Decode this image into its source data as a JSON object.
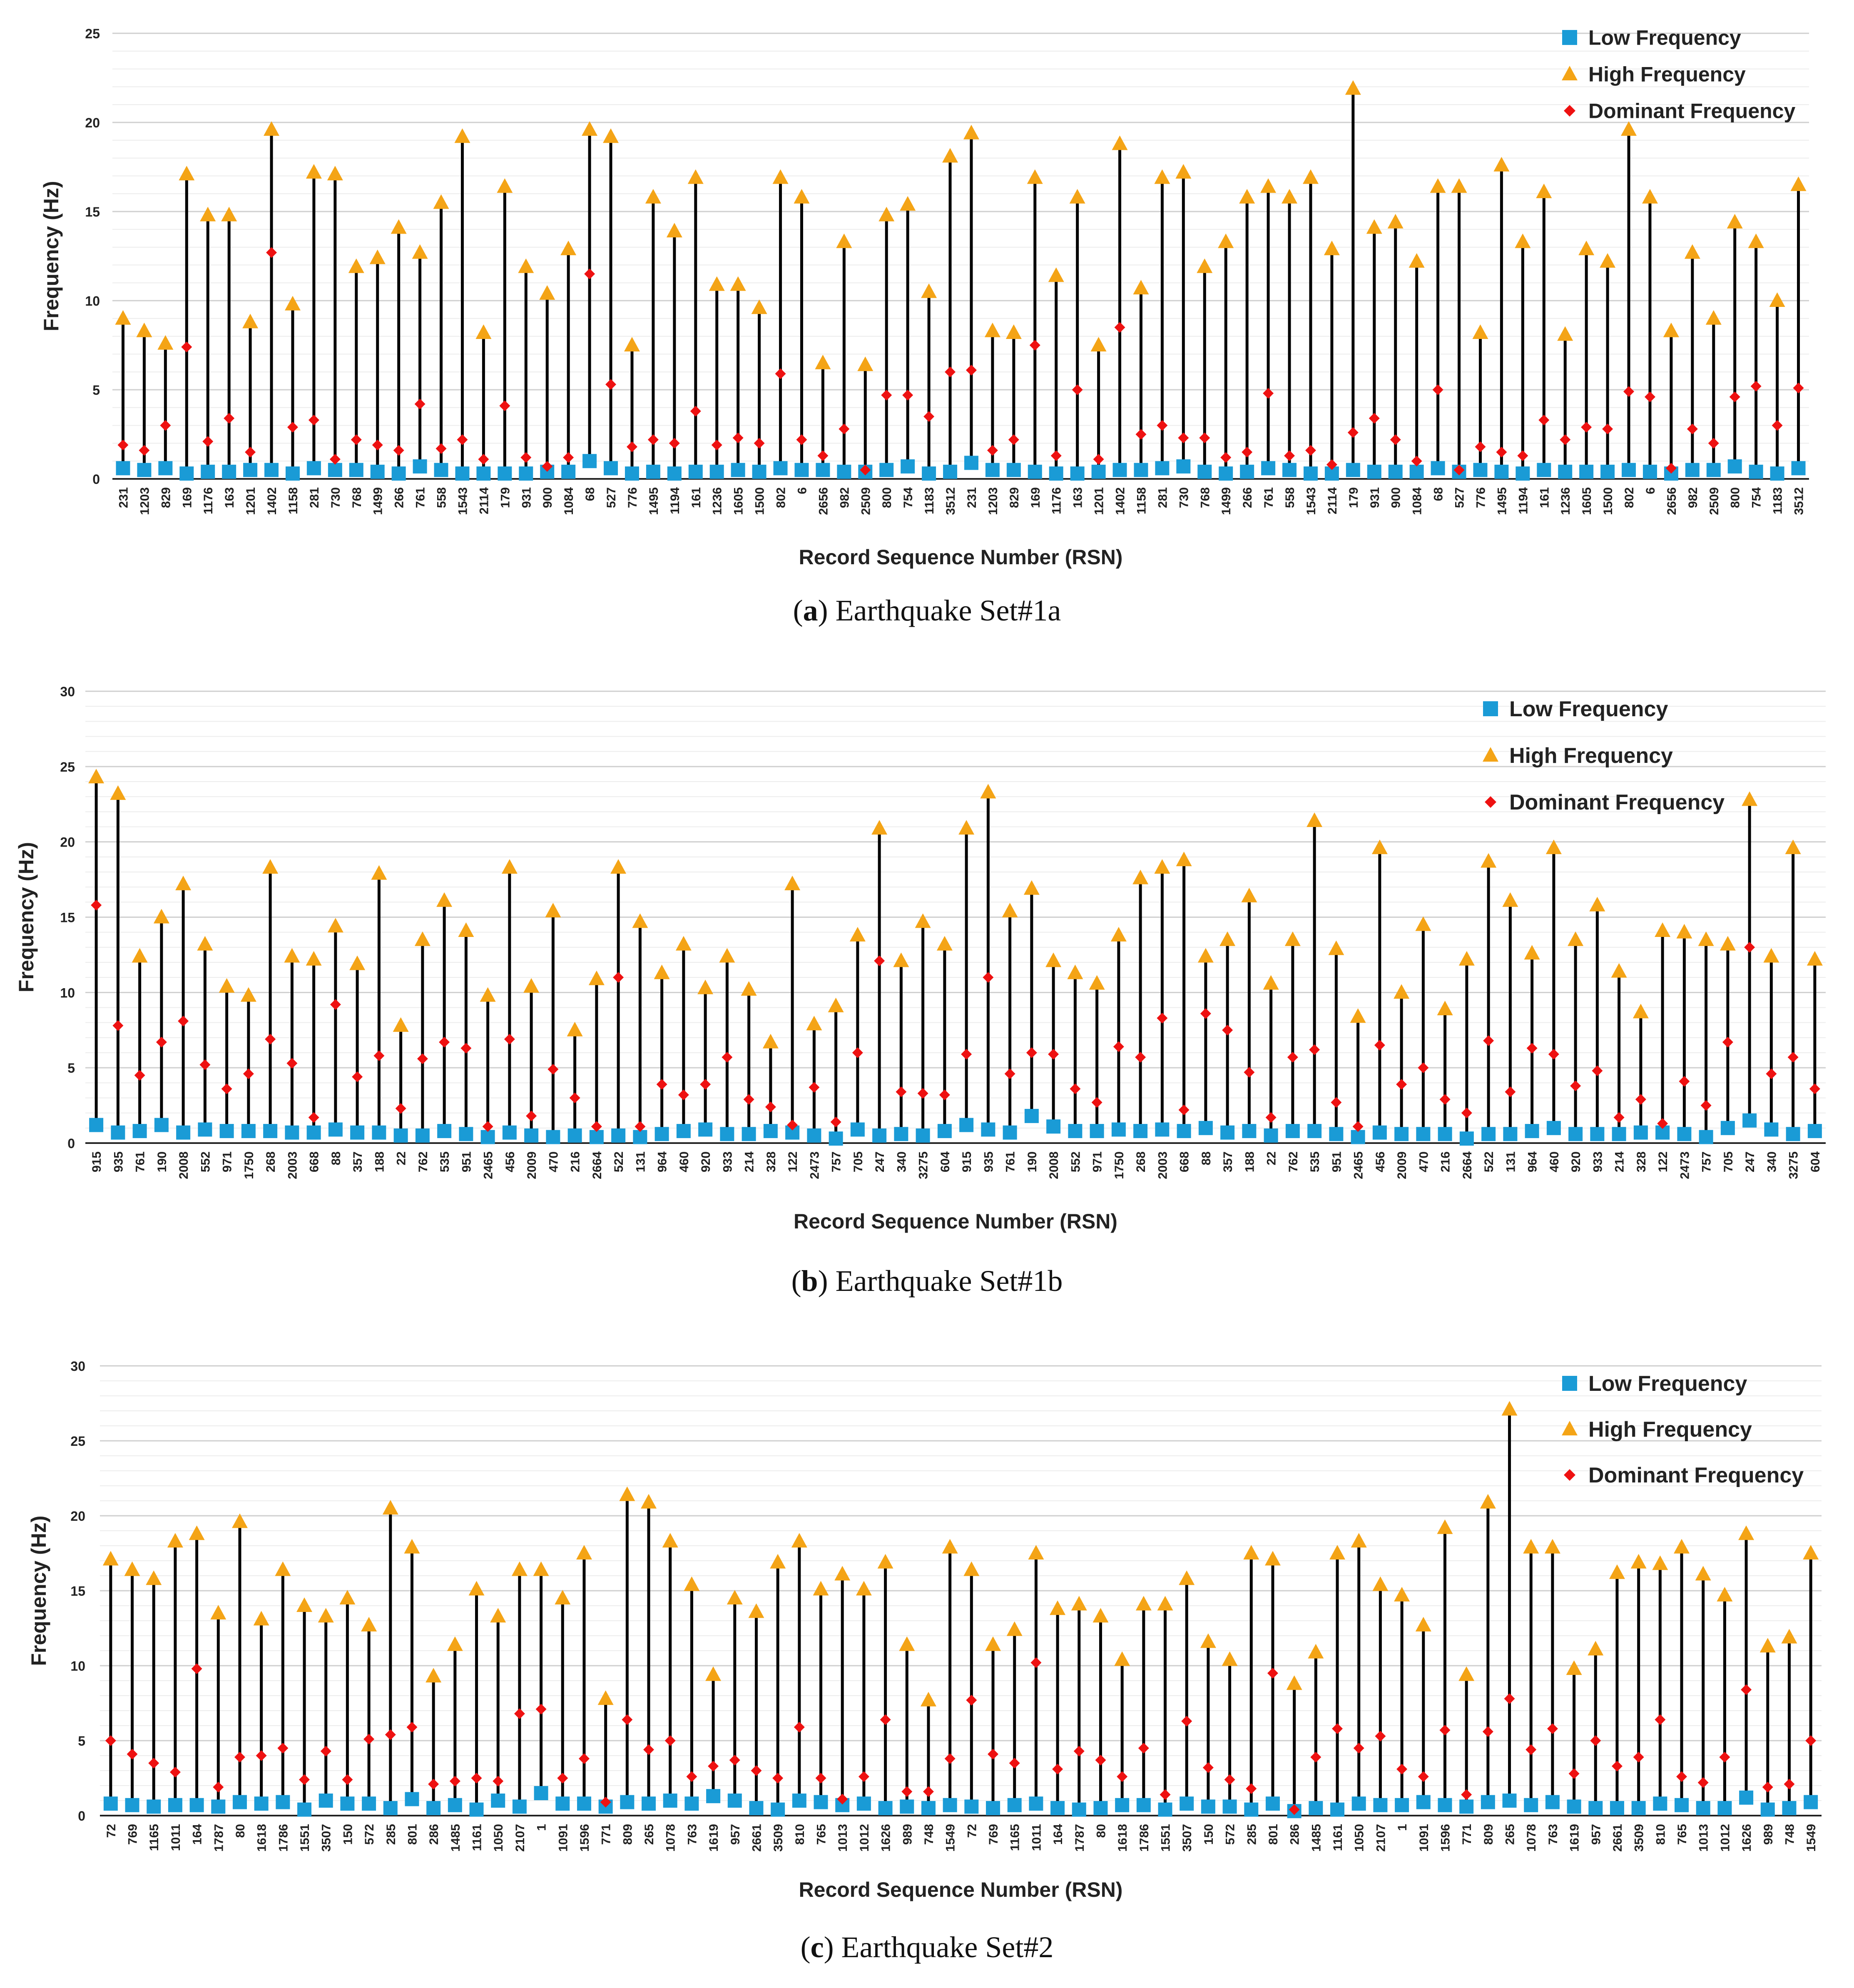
{
  "colors": {
    "low": "#1a9bd6",
    "high": "#f4a416",
    "dominant": "#ee1111",
    "stem": "#000000",
    "grid": "#d9d9d9"
  },
  "chart_data": [
    {
      "type": "scatter",
      "xlabel": "Record Sequence Number (RSN)",
      "ylabel": "Frequency (Hz)",
      "ylim": [
        0,
        25
      ],
      "yticks": [
        0,
        5,
        10,
        15,
        20,
        25
      ],
      "grid": true,
      "legend": "top-right",
      "caption": {
        "letter": "a",
        "text": "Earthquake Set#1a"
      },
      "categories": [
        "231",
        "1203",
        "829",
        "169",
        "1176",
        "163",
        "1201",
        "1402",
        "1158",
        "281",
        "730",
        "768",
        "1499",
        "266",
        "761",
        "558",
        "1543",
        "2114",
        "179",
        "931",
        "900",
        "1084",
        "68",
        "527",
        "776",
        "1495",
        "1194",
        "161",
        "1236",
        "1605",
        "1500",
        "802",
        "6",
        "2656",
        "982",
        "2509",
        "800",
        "754",
        "1183",
        "3512",
        "231",
        "1203",
        "829",
        "169",
        "1176",
        "163",
        "1201",
        "1402",
        "1158",
        "281",
        "730",
        "768",
        "1499",
        "266",
        "761",
        "558",
        "1543",
        "2114",
        "179",
        "931",
        "900",
        "1084",
        "68",
        "527",
        "776",
        "1495",
        "1194",
        "161",
        "1236",
        "1605",
        "1500",
        "802",
        "6",
        "2656",
        "982",
        "2509",
        "800",
        "754",
        "1183",
        "3512"
      ],
      "series": [
        {
          "name": "Low Frequency",
          "values": [
            0.6,
            0.5,
            0.6,
            0.3,
            0.4,
            0.4,
            0.5,
            0.5,
            0.3,
            0.6,
            0.5,
            0.5,
            0.4,
            0.3,
            0.7,
            0.5,
            0.3,
            0.3,
            0.3,
            0.3,
            0.4,
            0.4,
            1.0,
            0.6,
            0.3,
            0.4,
            0.3,
            0.4,
            0.4,
            0.5,
            0.4,
            0.6,
            0.5,
            0.5,
            0.4,
            0.4,
            0.5,
            0.7,
            0.3,
            0.4,
            0.9,
            0.5,
            0.5,
            0.4,
            0.3,
            0.3,
            0.4,
            0.5,
            0.5,
            0.6,
            0.7,
            0.4,
            0.3,
            0.4,
            0.6,
            0.5,
            0.3,
            0.3,
            0.5,
            0.4,
            0.4,
            0.4,
            0.6,
            0.4,
            0.5,
            0.4,
            0.3,
            0.5,
            0.4,
            0.4,
            0.4,
            0.5,
            0.4,
            0.3,
            0.5,
            0.5,
            0.7,
            0.4,
            0.3,
            0.6
          ]
        },
        {
          "name": "High Frequency",
          "values": [
            9.0,
            8.3,
            7.6,
            17.1,
            14.8,
            14.8,
            8.8,
            19.6,
            9.8,
            17.2,
            17.1,
            11.9,
            12.4,
            14.1,
            12.7,
            15.5,
            19.2,
            8.2,
            16.4,
            11.9,
            10.4,
            12.9,
            19.6,
            19.2,
            7.5,
            15.8,
            13.9,
            16.9,
            10.9,
            10.9,
            9.6,
            16.9,
            15.8,
            6.5,
            13.3,
            6.4,
            14.8,
            15.4,
            10.5,
            18.1,
            19.4,
            8.3,
            8.2,
            16.9,
            11.4,
            15.8,
            7.5,
            18.8,
            10.7,
            16.9,
            17.2,
            11.9,
            13.3,
            15.8,
            16.4,
            15.8,
            16.9,
            12.9,
            21.9,
            14.1,
            14.4,
            12.2,
            16.4,
            16.4,
            8.2,
            17.6,
            13.3,
            16.1,
            8.1,
            12.9,
            12.2,
            19.6,
            15.8,
            8.3,
            12.7,
            9.0,
            14.4,
            13.3,
            10.0,
            16.5
          ]
        },
        {
          "name": "Dominant Frequency",
          "values": [
            1.9,
            1.6,
            3.0,
            7.4,
            2.1,
            3.4,
            1.5,
            12.7,
            2.9,
            3.3,
            1.1,
            2.2,
            1.9,
            1.6,
            4.2,
            1.7,
            2.2,
            1.1,
            4.1,
            1.2,
            0.7,
            1.2,
            11.5,
            5.3,
            1.8,
            2.2,
            2.0,
            3.8,
            1.9,
            2.3,
            2.0,
            5.9,
            2.2,
            1.3,
            2.8,
            0.5,
            4.7,
            4.7,
            3.5,
            6.0,
            6.1,
            1.6,
            2.2,
            7.5,
            1.3,
            5.0,
            1.1,
            8.5,
            2.5,
            3.0,
            2.3,
            2.3,
            1.2,
            1.5,
            4.8,
            1.3,
            1.6,
            0.8,
            2.6,
            3.4,
            2.2,
            1.0,
            5.0,
            0.5,
            1.8,
            1.5,
            1.3,
            3.3,
            2.2,
            2.9,
            2.8,
            4.9,
            4.6,
            0.6,
            2.8,
            2.0,
            4.6,
            5.2,
            3.0,
            5.1
          ]
        }
      ]
    },
    {
      "type": "scatter",
      "xlabel": "Record Sequence Number (RSN)",
      "ylabel": "Frequency (Hz)",
      "ylim": [
        0,
        30
      ],
      "yticks": [
        0,
        5,
        10,
        15,
        20,
        25,
        30
      ],
      "grid": true,
      "legend": "top-right",
      "caption": {
        "letter": "b",
        "text": "Earthquake Set#1b"
      },
      "categories": [
        "915",
        "935",
        "761",
        "190",
        "2008",
        "552",
        "971",
        "1750",
        "268",
        "2003",
        "668",
        "88",
        "357",
        "188",
        "22",
        "762",
        "535",
        "951",
        "2465",
        "456",
        "2009",
        "470",
        "216",
        "2664",
        "522",
        "131",
        "964",
        "460",
        "920",
        "933",
        "214",
        "328",
        "122",
        "2473",
        "757",
        "705",
        "247",
        "340",
        "3275",
        "604",
        "915",
        "935",
        "761",
        "190",
        "2008",
        "552",
        "971",
        "1750",
        "268",
        "2003",
        "668",
        "88",
        "357",
        "188",
        "22",
        "762",
        "535",
        "951",
        "2465",
        "456",
        "2009",
        "470",
        "216",
        "2664",
        "522",
        "131",
        "964",
        "460",
        "920",
        "933",
        "214",
        "328",
        "122",
        "2473",
        "757",
        "705",
        "247",
        "340",
        "3275",
        "604"
      ],
      "series": [
        {
          "name": "Low Frequency",
          "values": [
            1.2,
            0.7,
            0.8,
            1.2,
            0.7,
            0.9,
            0.8,
            0.8,
            0.8,
            0.7,
            0.7,
            0.9,
            0.7,
            0.7,
            0.5,
            0.5,
            0.8,
            0.6,
            0.4,
            0.7,
            0.5,
            0.4,
            0.5,
            0.4,
            0.5,
            0.4,
            0.6,
            0.8,
            0.9,
            0.6,
            0.6,
            0.8,
            0.7,
            0.5,
            0.3,
            0.9,
            0.5,
            0.6,
            0.5,
            0.8,
            1.2,
            0.9,
            0.7,
            1.8,
            1.1,
            0.8,
            0.8,
            0.9,
            0.8,
            0.9,
            0.8,
            1.0,
            0.7,
            0.8,
            0.5,
            0.8,
            0.8,
            0.6,
            0.4,
            0.7,
            0.6,
            0.6,
            0.6,
            0.3,
            0.6,
            0.6,
            0.8,
            1.0,
            0.6,
            0.6,
            0.6,
            0.7,
            0.7,
            0.6,
            0.4,
            1.0,
            1.5,
            0.9,
            0.6,
            0.8
          ]
        },
        {
          "name": "High Frequency",
          "values": [
            24.3,
            23.2,
            12.4,
            15.0,
            17.2,
            13.2,
            10.4,
            9.8,
            18.3,
            12.4,
            12.2,
            14.4,
            11.9,
            17.9,
            7.8,
            13.5,
            16.1,
            14.1,
            9.8,
            18.3,
            10.4,
            15.4,
            7.5,
            10.9,
            18.3,
            14.7,
            11.3,
            13.2,
            10.3,
            12.4,
            10.2,
            6.7,
            17.2,
            7.9,
            9.1,
            13.8,
            20.9,
            12.1,
            14.7,
            13.2,
            20.9,
            23.3,
            15.4,
            16.9,
            12.1,
            11.3,
            10.6,
            13.8,
            17.6,
            18.3,
            18.8,
            12.4,
            13.5,
            16.4,
            10.6,
            13.5,
            21.4,
            12.9,
            8.4,
            19.6,
            10.0,
            14.5,
            8.9,
            12.2,
            18.7,
            16.1,
            12.6,
            19.6,
            13.5,
            15.8,
            11.4,
            8.7,
            14.1,
            14.0,
            13.5,
            13.2,
            22.8,
            12.4,
            19.6,
            12.2
          ]
        },
        {
          "name": "Dominant Frequency",
          "values": [
            15.8,
            7.8,
            4.5,
            6.7,
            8.1,
            5.2,
            3.6,
            4.6,
            6.9,
            5.3,
            1.7,
            9.2,
            4.4,
            5.8,
            2.3,
            5.6,
            6.7,
            6.3,
            1.1,
            6.9,
            1.8,
            4.9,
            3.0,
            1.1,
            11.0,
            1.1,
            3.9,
            3.2,
            3.9,
            5.7,
            2.9,
            2.4,
            1.2,
            3.7,
            1.4,
            6.0,
            12.1,
            3.4,
            3.3,
            3.2,
            5.9,
            11.0,
            4.6,
            6.0,
            5.9,
            3.6,
            2.7,
            6.4,
            5.7,
            8.3,
            2.2,
            8.6,
            7.5,
            4.7,
            1.7,
            5.7,
            6.2,
            2.7,
            1.1,
            6.5,
            3.9,
            5.0,
            2.9,
            2.0,
            6.8,
            3.4,
            6.3,
            5.9,
            3.8,
            4.8,
            1.7,
            2.9,
            1.3,
            4.1,
            2.5,
            6.7,
            13.0,
            4.6,
            5.7,
            3.6
          ]
        }
      ]
    },
    {
      "type": "scatter",
      "xlabel": "Record Sequence Number (RSN)",
      "ylabel": "Frequency (Hz)",
      "ylim": [
        0,
        30
      ],
      "yticks": [
        0,
        5,
        10,
        15,
        20,
        25,
        30
      ],
      "grid": true,
      "legend": "top-right",
      "caption": {
        "letter": "c",
        "text": "Earthquake Set#2"
      },
      "categories": [
        "72",
        "769",
        "1165",
        "1011",
        "164",
        "1787",
        "80",
        "1618",
        "1786",
        "1551",
        "3507",
        "150",
        "572",
        "285",
        "801",
        "286",
        "1485",
        "1161",
        "1050",
        "2107",
        "1",
        "1091",
        "1596",
        "771",
        "809",
        "265",
        "1078",
        "763",
        "1619",
        "957",
        "2661",
        "3509",
        "810",
        "765",
        "1013",
        "1012",
        "1626",
        "989",
        "748",
        "1549",
        "72",
        "769",
        "1165",
        "1011",
        "164",
        "1787",
        "80",
        "1618",
        "1786",
        "1551",
        "3507",
        "150",
        "572",
        "285",
        "801",
        "286",
        "1485",
        "1161",
        "1050",
        "2107",
        "1",
        "1091",
        "1596",
        "771",
        "809",
        "265",
        "1078",
        "763",
        "1619",
        "957",
        "2661",
        "3509",
        "810",
        "765",
        "1013",
        "1012",
        "1626",
        "989",
        "748",
        "1549"
      ],
      "series": [
        {
          "name": "Low Frequency",
          "values": [
            0.8,
            0.7,
            0.6,
            0.7,
            0.7,
            0.6,
            0.9,
            0.8,
            0.9,
            0.4,
            1.0,
            0.8,
            0.8,
            0.5,
            1.1,
            0.5,
            0.7,
            0.4,
            1.0,
            0.6,
            1.5,
            0.8,
            0.8,
            0.6,
            0.9,
            0.8,
            1.0,
            0.8,
            1.3,
            1.0,
            0.5,
            0.4,
            1.0,
            0.9,
            0.7,
            0.8,
            0.5,
            0.6,
            0.5,
            0.7,
            0.6,
            0.5,
            0.7,
            0.8,
            0.5,
            0.4,
            0.5,
            0.7,
            0.7,
            0.4,
            0.8,
            0.6,
            0.6,
            0.4,
            0.8,
            0.3,
            0.5,
            0.4,
            0.8,
            0.7,
            0.7,
            0.9,
            0.7,
            0.6,
            0.9,
            1.0,
            0.7,
            0.9,
            0.6,
            0.5,
            0.5,
            0.5,
            0.8,
            0.7,
            0.5,
            0.5,
            1.2,
            0.4,
            0.5,
            0.9
          ]
        },
        {
          "name": "High Frequency",
          "values": [
            17.1,
            16.4,
            15.8,
            18.3,
            18.8,
            13.5,
            19.6,
            13.1,
            16.4,
            14.0,
            13.3,
            14.5,
            12.7,
            20.5,
            17.9,
            9.3,
            11.4,
            15.1,
            13.3,
            16.4,
            16.4,
            14.5,
            17.5,
            7.8,
            21.4,
            20.9,
            18.3,
            15.4,
            9.4,
            14.5,
            13.6,
            16.9,
            18.3,
            15.1,
            16.1,
            15.1,
            16.9,
            11.4,
            7.7,
            17.9,
            16.4,
            11.4,
            12.4,
            17.5,
            13.8,
            14.1,
            13.3,
            10.4,
            14.1,
            14.1,
            15.8,
            11.6,
            10.4,
            17.5,
            17.1,
            8.8,
            10.9,
            17.5,
            18.3,
            15.4,
            14.7,
            12.7,
            19.2,
            9.4,
            20.9,
            27.1,
            17.9,
            17.9,
            9.8,
            11.1,
            16.2,
            16.9,
            16.8,
            17.9,
            16.1,
            14.7,
            18.8,
            11.3,
            11.9,
            17.5
          ]
        },
        {
          "name": "Dominant Frequency",
          "values": [
            5.0,
            4.1,
            3.5,
            2.9,
            9.8,
            1.9,
            3.9,
            4.0,
            4.5,
            2.4,
            4.3,
            2.4,
            5.1,
            5.4,
            5.9,
            2.1,
            2.3,
            2.5,
            2.3,
            6.8,
            7.1,
            2.5,
            3.8,
            0.9,
            6.4,
            4.4,
            5.0,
            2.6,
            3.3,
            3.7,
            3.0,
            2.5,
            5.9,
            2.5,
            1.1,
            2.6,
            6.4,
            1.6,
            1.6,
            3.8,
            7.7,
            4.1,
            3.5,
            10.2,
            3.1,
            4.3,
            3.7,
            2.6,
            4.5,
            1.4,
            6.3,
            3.2,
            2.4,
            1.8,
            9.5,
            0.4,
            3.9,
            5.8,
            4.5,
            5.3,
            3.1,
            2.6,
            5.7,
            1.4,
            5.6,
            7.8,
            4.4,
            5.8,
            2.8,
            5.0,
            3.3,
            3.9,
            6.4,
            2.6,
            2.2,
            3.9,
            8.4,
            1.9,
            2.1,
            5.0
          ]
        }
      ]
    }
  ]
}
